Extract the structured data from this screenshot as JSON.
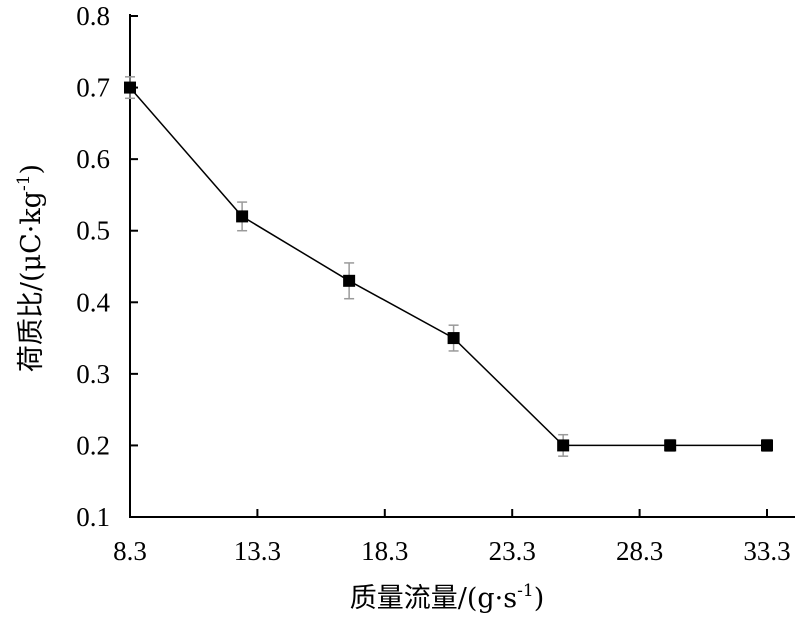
{
  "chart_data": {
    "type": "line",
    "title": "",
    "xlabel": "质量流量/(g·s",
    "xlabel_sup": "-1",
    "xlabel_close": ")",
    "ylabel": "荷质比/(μC·kg",
    "ylabel_sup": "-1",
    "ylabel_close": ")",
    "xlim": [
      8.3,
      33.3
    ],
    "ylim": [
      0.1,
      0.8
    ],
    "x_ticks": [
      "8.3",
      "13.3",
      "18.3",
      "23.3",
      "28.3",
      "33.3"
    ],
    "y_ticks": [
      "0.1",
      "0.2",
      "0.3",
      "0.4",
      "0.5",
      "0.6",
      "0.7",
      "0.8"
    ],
    "grid": false,
    "series": [
      {
        "x": [
          8.3,
          12.7,
          16.9,
          21.0,
          25.3,
          29.5,
          33.3
        ],
        "y": [
          0.7,
          0.52,
          0.43,
          0.35,
          0.2,
          0.2,
          0.2
        ],
        "err": [
          0.015,
          0.02,
          0.025,
          0.018,
          0.015,
          0.008,
          0.008
        ]
      }
    ]
  }
}
